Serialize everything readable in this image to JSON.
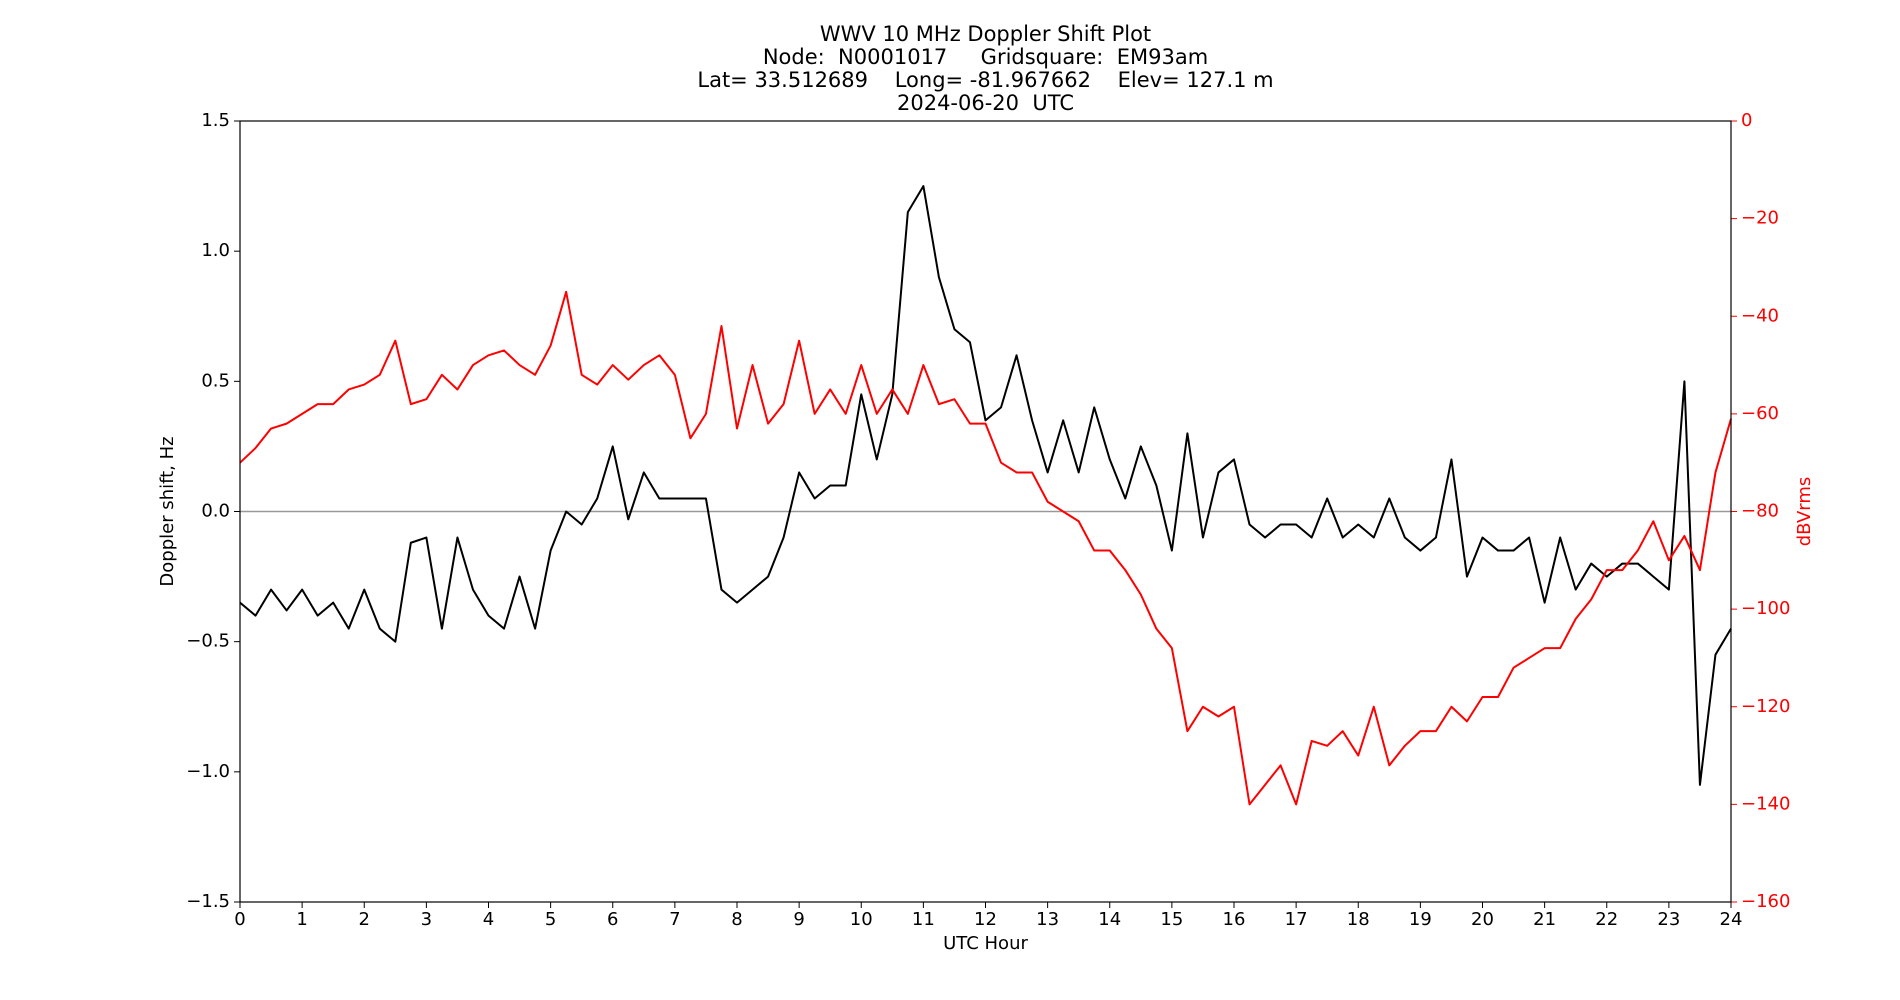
{
  "chart_data": {
    "type": "line",
    "title": [
      "WWV 10 MHz Doppler Shift Plot",
      "Node:  N0001017     Gridsquare:  EM93am",
      "Lat= 33.512689    Long= -81.967662    Elev= 127.1 m",
      "2024-06-20  UTC"
    ],
    "x_label": "UTC Hour",
    "y_label": "Doppler shift, Hz",
    "y2_label": "dBVrms",
    "xlim": [
      0,
      24
    ],
    "xticks": [
      0,
      1,
      2,
      3,
      4,
      5,
      6,
      7,
      8,
      9,
      10,
      11,
      12,
      13,
      14,
      15,
      16,
      17,
      18,
      19,
      20,
      21,
      22,
      23,
      24
    ],
    "ylim": [
      -1.5,
      1.5
    ],
    "yticks": [
      {
        "value": -1.5,
        "label": "−1.5"
      },
      {
        "value": -1.0,
        "label": "−1.0"
      },
      {
        "value": -0.5,
        "label": "−0.5"
      },
      {
        "value": 0,
        "label": "0.0"
      },
      0.5,
      {
        "value": 1.0,
        "label": "1.0"
      },
      1.5
    ],
    "y2lim": [
      -160,
      0
    ],
    "y2ticks": [
      {
        "value": -160,
        "label": "−160"
      },
      {
        "value": -140,
        "label": "−140"
      },
      {
        "value": -120,
        "label": "−120"
      },
      {
        "value": -100,
        "label": "−100"
      },
      {
        "value": -80,
        "label": "−80"
      },
      {
        "value": -60,
        "label": "−60"
      },
      {
        "value": -40,
        "label": "−40"
      },
      {
        "value": -20,
        "label": "−20"
      },
      0
    ],
    "y2_color": "#ff0000",
    "hline": 0,
    "hline_color": "#999999",
    "x": [
      0,
      0.25,
      0.5,
      0.75,
      1,
      1.25,
      1.5,
      1.75,
      2,
      2.25,
      2.5,
      2.75,
      3,
      3.25,
      3.5,
      3.75,
      4,
      4.25,
      4.5,
      4.75,
      5,
      5.25,
      5.5,
      5.75,
      6,
      6.25,
      6.5,
      6.75,
      7,
      7.25,
      7.5,
      7.75,
      8,
      8.25,
      8.5,
      8.75,
      9,
      9.25,
      9.5,
      9.75,
      10,
      10.25,
      10.5,
      10.75,
      11,
      11.25,
      11.5,
      11.75,
      12,
      12.25,
      12.5,
      12.75,
      13,
      13.25,
      13.5,
      13.75,
      14,
      14.25,
      14.5,
      14.75,
      15,
      15.25,
      15.5,
      15.75,
      16,
      16.25,
      16.5,
      16.75,
      17,
      17.25,
      17.5,
      17.75,
      18,
      18.25,
      18.5,
      18.75,
      19,
      19.25,
      19.5,
      19.75,
      20,
      20.25,
      20.5,
      20.75,
      21,
      21.25,
      21.5,
      21.75,
      22,
      22.25,
      22.5,
      22.75,
      23,
      23.25,
      23.5,
      23.75,
      24
    ],
    "series": [
      {
        "name": "Doppler shift",
        "color": "#000000",
        "values": [
          -0.35,
          -0.4,
          -0.3,
          -0.38,
          -0.3,
          -0.4,
          -0.35,
          -0.45,
          -0.3,
          -0.45,
          -0.5,
          -0.12,
          -0.1,
          -0.45,
          -0.1,
          -0.3,
          -0.4,
          -0.45,
          -0.25,
          -0.45,
          -0.15,
          0.0,
          -0.05,
          0.05,
          0.25,
          -0.03,
          0.15,
          0.05,
          0.05,
          0.05,
          0.05,
          -0.3,
          -0.35,
          -0.3,
          -0.25,
          -0.1,
          0.15,
          0.05,
          0.1,
          0.1,
          0.45,
          0.2,
          0.45,
          1.15,
          1.25,
          0.9,
          0.7,
          0.65,
          0.35,
          0.4,
          0.6,
          0.35,
          0.15,
          0.35,
          0.15,
          0.4,
          0.2,
          0.05,
          0.25,
          0.1,
          -0.15,
          0.3,
          -0.1,
          0.15,
          0.2,
          -0.05,
          -0.1,
          -0.05,
          -0.05,
          -0.1,
          0.05,
          -0.1,
          -0.05,
          -0.1,
          0.05,
          -0.1,
          -0.15,
          -0.1,
          0.2,
          -0.25,
          -0.1,
          -0.15,
          -0.15,
          -0.1,
          -0.35,
          -0.1,
          -0.3,
          -0.2,
          -0.25,
          -0.2,
          -0.2,
          -0.25,
          -0.3,
          0.5,
          -1.05,
          -0.55,
          -0.45
        ]
      },
      {
        "name": "dBVrms",
        "color": "#ff0000",
        "axis": "y2",
        "values": [
          -70,
          -67,
          -63,
          -62,
          -60,
          -58,
          -58,
          -55,
          -54,
          -52,
          -45,
          -58,
          -57,
          -52,
          -55,
          -50,
          -48,
          -47,
          -50,
          -52,
          -46,
          -35,
          -52,
          -54,
          -50,
          -53,
          -50,
          -48,
          -52,
          -65,
          -60,
          -42,
          -63,
          -50,
          -62,
          -58,
          -45,
          -60,
          -55,
          -60,
          -50,
          -60,
          -55,
          -60,
          -50,
          -58,
          -57,
          -62,
          -62,
          -70,
          -72,
          -72,
          -78,
          -80,
          -82,
          -88,
          -88,
          -92,
          -97,
          -104,
          -108,
          -125,
          -120,
          -122,
          -120,
          -140,
          -136,
          -132,
          -140,
          -127,
          -128,
          -125,
          -130,
          -120,
          -132,
          -128,
          -125,
          -125,
          -120,
          -123,
          -118,
          -118,
          -112,
          -110,
          -108,
          -108,
          -102,
          -98,
          -92,
          -92,
          -88,
          -82,
          -90,
          -85,
          -92,
          -72,
          -61
        ]
      }
    ]
  }
}
